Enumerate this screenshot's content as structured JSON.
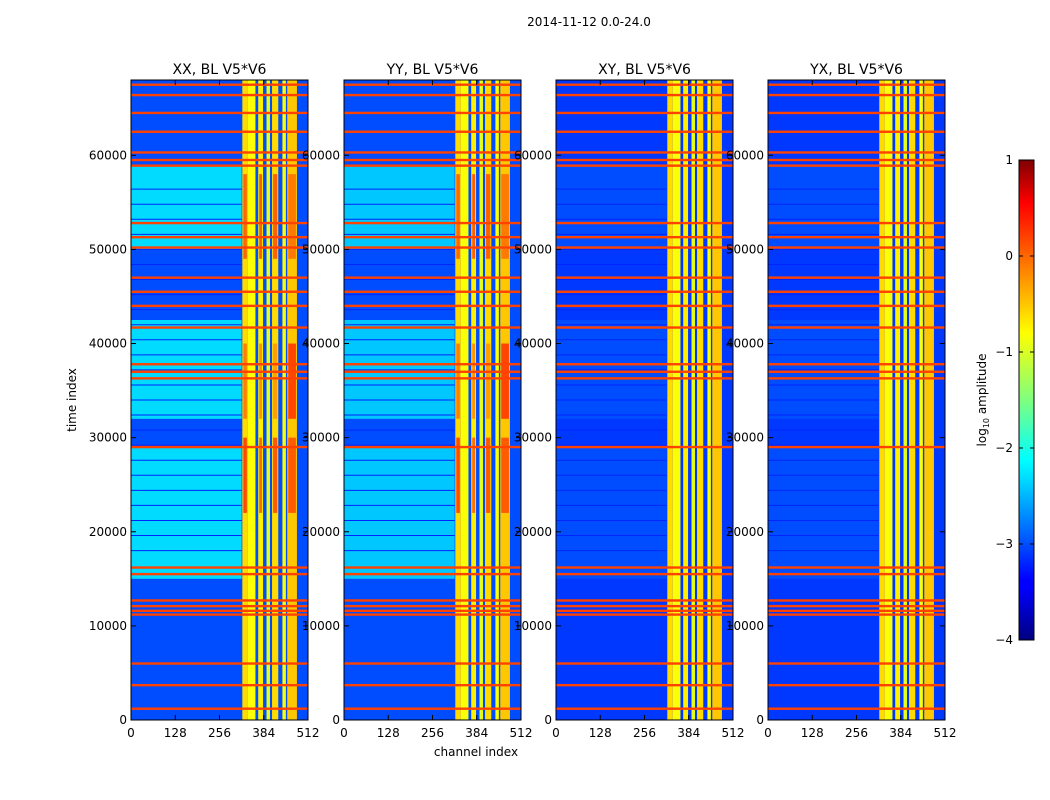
{
  "chart_data": {
    "type": "heatmap",
    "suptitle": "2014-11-12 0.0-24.0",
    "xlabel": "channel index",
    "ylabel": "time index",
    "xlim": [
      0,
      512
    ],
    "ylim": [
      0,
      68000
    ],
    "xticks": [
      0,
      128,
      256,
      384,
      512
    ],
    "yticks": [
      0,
      10000,
      20000,
      30000,
      40000,
      50000,
      60000
    ],
    "colorbar": {
      "label_prefix": "log",
      "label_sub": "10",
      "label_suffix": " amplitude",
      "range": [
        -4,
        1
      ],
      "ticks": [
        1,
        0,
        -1,
        -2,
        -3,
        -4
      ],
      "tick_labels": [
        "1",
        "0",
        "−1",
        "−2",
        "−3",
        "−4"
      ]
    },
    "panels": [
      {
        "title": "XX, BL V5*V6",
        "polarization": "XX",
        "background_log10": -2.3,
        "quiet_background_log10": -3.0
      },
      {
        "title": "YY, BL V5*V6",
        "polarization": "YY",
        "background_log10": -2.4,
        "quiet_background_log10": -3.0
      },
      {
        "title": "XY, BL V5*V6",
        "polarization": "XY",
        "background_log10": -3.0,
        "quiet_background_log10": -3.1
      },
      {
        "title": "YX, BL V5*V6",
        "polarization": "YX",
        "background_log10": -3.0,
        "quiet_background_log10": -3.1
      }
    ],
    "rfi_channel_bands": [
      [
        322,
        338
      ],
      [
        338,
        360
      ],
      [
        368,
        382
      ],
      [
        392,
        402
      ],
      [
        408,
        426
      ],
      [
        438,
        448
      ],
      [
        452,
        480
      ]
    ],
    "flagged_time_rows": [
      1200,
      3700,
      6000,
      11200,
      11600,
      12100,
      12700,
      15500,
      16200,
      29000,
      36300,
      37000,
      37800,
      41700,
      44000,
      45500,
      47000,
      50200,
      51300,
      52800,
      58900,
      59500,
      60300,
      62500,
      64500,
      66400,
      67500
    ]
  }
}
